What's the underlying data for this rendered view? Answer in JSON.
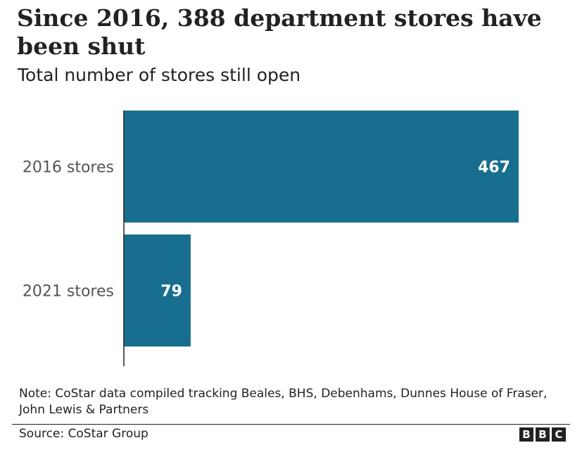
{
  "title": "Since 2016, 388 department stores have been shut",
  "subtitle": "Total number of stores still open",
  "note": "Note: CoStar data compiled tracking Beales, BHS, Debenhams, Dunnes House of Fraser, John Lewis & Partners",
  "source": "Source: CoStar Group",
  "logo": [
    "B",
    "B",
    "C"
  ],
  "colors": {
    "bar": "#176e8e",
    "axis": "#222222",
    "category_label": "#555555",
    "value_label": "#ffffff"
  },
  "chart_data": {
    "type": "bar",
    "orientation": "horizontal",
    "categories": [
      "2016 stores",
      "2021 stores"
    ],
    "values": [
      467,
      79
    ],
    "data_labels": [
      "467",
      "79"
    ],
    "xlim": [
      0,
      467
    ]
  }
}
